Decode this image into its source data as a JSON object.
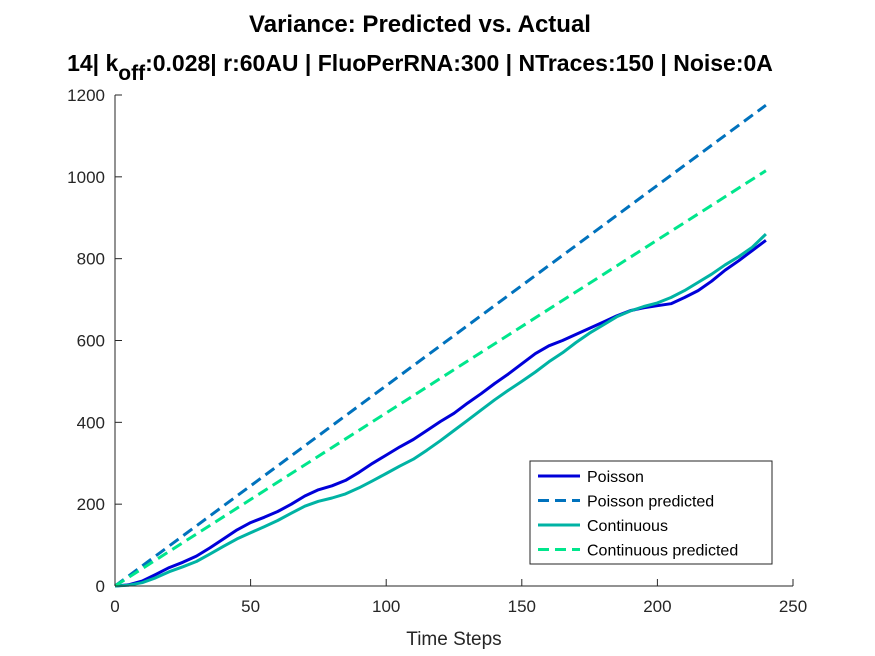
{
  "chart_data": {
    "type": "line",
    "title": "Variance: Predicted vs. Actual",
    "subtitle": {
      "prefix": "14| k",
      "sub": "off",
      "suffix": ":0.028| r:60AU | FluoPerRNA:300 | NTraces:150 | Noise:0A"
    },
    "xlabel": "Time Steps",
    "ylabel": "",
    "xlim": [
      0,
      250
    ],
    "ylim": [
      0,
      1200
    ],
    "xticks": [
      0,
      50,
      100,
      150,
      200,
      250
    ],
    "yticks": [
      0,
      200,
      400,
      600,
      800,
      1000,
      1200
    ],
    "grid": false,
    "legend_position": "bottom-right",
    "series": [
      {
        "name": "Poisson",
        "color": "#0000d9",
        "style": "solid",
        "x": [
          0,
          5,
          10,
          15,
          20,
          25,
          30,
          35,
          40,
          45,
          50,
          55,
          60,
          65,
          70,
          75,
          80,
          85,
          90,
          95,
          100,
          105,
          110,
          115,
          120,
          125,
          130,
          135,
          140,
          145,
          150,
          155,
          160,
          165,
          170,
          175,
          180,
          185,
          190,
          195,
          200,
          205,
          210,
          215,
          220,
          225,
          230,
          235,
          240
        ],
        "y": [
          0,
          3,
          12,
          28,
          45,
          58,
          73,
          93,
          115,
          137,
          155,
          168,
          182,
          200,
          220,
          235,
          245,
          258,
          278,
          300,
          320,
          340,
          358,
          380,
          402,
          422,
          447,
          470,
          495,
          518,
          543,
          568,
          587,
          600,
          615,
          630,
          645,
          660,
          673,
          680,
          685,
          690,
          705,
          722,
          745,
          772,
          795,
          820,
          845
        ]
      },
      {
        "name": "Poisson predicted",
        "color": "#0072bd",
        "style": "dashed",
        "x": [
          0,
          240
        ],
        "y": [
          0,
          1175
        ]
      },
      {
        "name": "Continuous",
        "color": "#00b3a4",
        "style": "solid",
        "x": [
          0,
          5,
          10,
          15,
          20,
          25,
          30,
          35,
          40,
          45,
          50,
          55,
          60,
          65,
          70,
          75,
          80,
          85,
          90,
          95,
          100,
          105,
          110,
          115,
          120,
          125,
          130,
          135,
          140,
          145,
          150,
          155,
          160,
          165,
          170,
          175,
          180,
          185,
          190,
          195,
          200,
          205,
          210,
          215,
          220,
          225,
          230,
          235,
          240
        ],
        "y": [
          0,
          2,
          8,
          20,
          35,
          47,
          60,
          78,
          97,
          115,
          130,
          145,
          160,
          178,
          195,
          207,
          215,
          225,
          240,
          257,
          275,
          293,
          310,
          332,
          355,
          380,
          405,
          430,
          455,
          478,
          500,
          523,
          548,
          570,
          595,
          618,
          638,
          658,
          672,
          683,
          692,
          705,
          722,
          742,
          762,
          785,
          805,
          828,
          860
        ]
      },
      {
        "name": "Continuous predicted",
        "color": "#00e68c",
        "style": "dashed",
        "x": [
          0,
          240
        ],
        "y": [
          0,
          1015
        ]
      }
    ]
  }
}
